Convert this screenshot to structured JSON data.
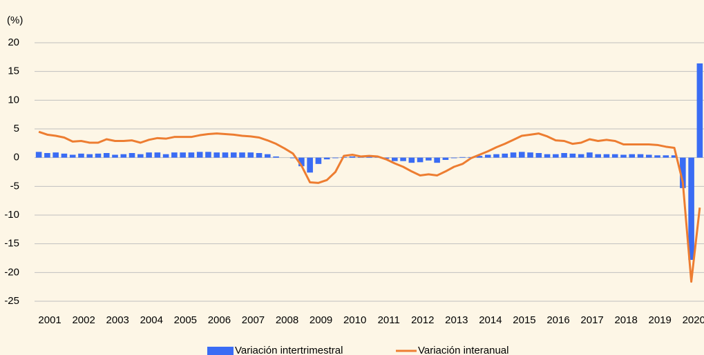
{
  "chart_data": {
    "type": "bar_line",
    "y_unit_label": "(%)",
    "categories": [
      "2001",
      null,
      null,
      null,
      "2002",
      null,
      null,
      null,
      "2003",
      null,
      null,
      null,
      "2004",
      null,
      null,
      null,
      "2005",
      null,
      null,
      null,
      "2006",
      null,
      null,
      null,
      "2007",
      null,
      null,
      null,
      "2008",
      null,
      null,
      null,
      "2009",
      null,
      null,
      null,
      "2010",
      null,
      null,
      null,
      "2011",
      null,
      null,
      null,
      "2012",
      null,
      null,
      null,
      "2013",
      null,
      null,
      null,
      "2014",
      null,
      null,
      null,
      "2015",
      null,
      null,
      null,
      "2016",
      null,
      null,
      null,
      "2017",
      null,
      null,
      null,
      "2018",
      null,
      null,
      null,
      "2019",
      null,
      null,
      null,
      "2020",
      null,
      null
    ],
    "series": [
      {
        "name": "Variación intertrimestral",
        "type": "bar",
        "color": "#3a6cf4",
        "values": [
          1.0,
          0.8,
          0.9,
          0.7,
          0.5,
          0.7,
          0.6,
          0.7,
          0.8,
          0.5,
          0.6,
          0.8,
          0.6,
          0.9,
          0.9,
          0.6,
          0.9,
          0.9,
          0.9,
          1.0,
          1.0,
          0.9,
          0.9,
          0.9,
          0.9,
          0.9,
          0.8,
          0.6,
          0.2,
          0.0,
          -0.1,
          -1.5,
          -2.6,
          -1.1,
          -0.3,
          -0.1,
          0.1,
          0.2,
          0.1,
          0.2,
          0.1,
          -0.2,
          -0.6,
          -0.6,
          -0.9,
          -0.8,
          -0.5,
          -0.9,
          -0.4,
          -0.1,
          0.1,
          0.1,
          0.3,
          0.5,
          0.6,
          0.7,
          0.9,
          1.0,
          0.9,
          0.8,
          0.6,
          0.6,
          0.8,
          0.7,
          0.6,
          0.9,
          0.6,
          0.6,
          0.6,
          0.5,
          0.6,
          0.6,
          0.5,
          0.4,
          0.4,
          0.4,
          -5.3,
          -17.8,
          16.4
        ]
      },
      {
        "name": "Variación interanual",
        "type": "line",
        "color": "#ed7d31",
        "values": [
          4.5,
          4.0,
          3.8,
          3.5,
          2.8,
          2.9,
          2.6,
          2.6,
          3.2,
          2.9,
          2.9,
          3.0,
          2.6,
          3.1,
          3.4,
          3.3,
          3.6,
          3.6,
          3.6,
          3.9,
          4.1,
          4.2,
          4.1,
          4.0,
          3.8,
          3.7,
          3.5,
          3.0,
          2.4,
          1.6,
          0.7,
          -1.4,
          -4.3,
          -4.4,
          -3.9,
          -2.5,
          0.3,
          0.5,
          0.2,
          0.3,
          0.2,
          -0.3,
          -1.0,
          -1.6,
          -2.4,
          -3.1,
          -2.9,
          -3.1,
          -2.4,
          -1.6,
          -1.1,
          -0.1,
          0.5,
          1.1,
          1.8,
          2.4,
          3.1,
          3.8,
          4.0,
          4.2,
          3.7,
          3.0,
          2.9,
          2.4,
          2.6,
          3.2,
          2.9,
          3.1,
          2.9,
          2.3,
          2.3,
          2.3,
          2.3,
          2.2,
          1.9,
          1.7,
          -4.3,
          -21.6,
          -8.7
        ]
      }
    ],
    "ylim": [
      -25,
      20
    ],
    "yticks": [
      -25,
      -20,
      -15,
      -10,
      -5,
      0,
      5,
      10,
      15,
      20
    ],
    "grid": true,
    "legend": "bottom"
  }
}
